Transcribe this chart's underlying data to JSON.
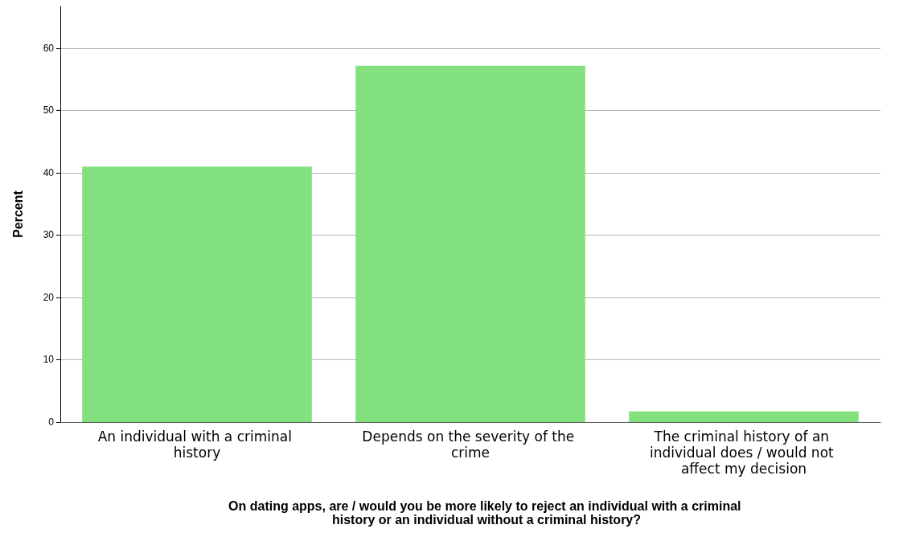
{
  "chart_data": {
    "type": "bar",
    "xlabel": "On dating apps, are / would you be more likely to reject an individual with a criminal history or an individual without a criminal history?",
    "ylabel": "Percent",
    "categories": [
      "An individual with a criminal history",
      "Depends on the severity of the crime",
      "The criminal history of an individual does / would not affect my decision"
    ],
    "values": [
      41.0,
      57.2,
      1.7
    ],
    "color": "#82e17e",
    "ylim": [
      0,
      66.7
    ],
    "yticks": [
      0,
      10,
      20,
      30,
      40,
      50,
      60
    ],
    "grid": "y"
  }
}
